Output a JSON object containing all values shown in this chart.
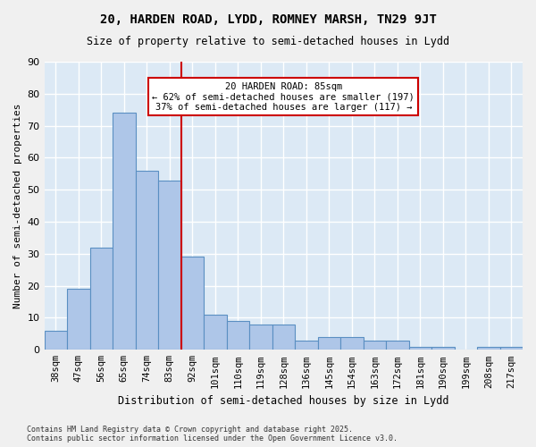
{
  "title1": "20, HARDEN ROAD, LYDD, ROMNEY MARSH, TN29 9JT",
  "title2": "Size of property relative to semi-detached houses in Lydd",
  "xlabel": "Distribution of semi-detached houses by size in Lydd",
  "ylabel": "Number of semi-detached properties",
  "footer1": "Contains HM Land Registry data © Crown copyright and database right 2025.",
  "footer2": "Contains public sector information licensed under the Open Government Licence v3.0.",
  "categories": [
    "38sqm",
    "47sqm",
    "56sqm",
    "65sqm",
    "74sqm",
    "83sqm",
    "92sqm",
    "101sqm",
    "110sqm",
    "119sqm",
    "128sqm",
    "136sqm",
    "145sqm",
    "154sqm",
    "163sqm",
    "172sqm",
    "181sqm",
    "190sqm",
    "199sqm",
    "208sqm",
    "217sqm"
  ],
  "values": [
    6,
    19,
    32,
    74,
    56,
    53,
    29,
    11,
    9,
    8,
    8,
    3,
    4,
    4,
    3,
    3,
    1,
    1,
    0,
    1,
    1
  ],
  "bar_color": "#aec6e8",
  "bar_edge_color": "#5a8fc2",
  "background_color": "#dce9f5",
  "grid_color": "#ffffff",
  "vline_x": 5.5,
  "vline_color": "#cc0000",
  "annotation_box_text": "20 HARDEN ROAD: 85sqm\n← 62% of semi-detached houses are smaller (197)\n37% of semi-detached houses are larger (117) →",
  "annotation_box_color": "#ffffff",
  "annotation_box_edge_color": "#cc0000",
  "ylim": [
    0,
    90
  ],
  "yticks": [
    0,
    10,
    20,
    30,
    40,
    50,
    60,
    70,
    80,
    90
  ]
}
